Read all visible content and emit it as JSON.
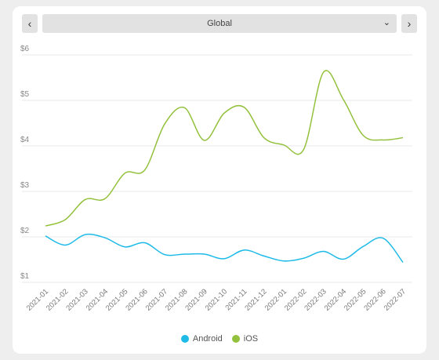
{
  "controls": {
    "prev_label": "‹",
    "next_label": "›",
    "region_value": "Global",
    "prev_icon": "chevron-left-icon",
    "next_icon": "chevron-right-icon",
    "dropdown_icon": "chevron-down-icon"
  },
  "chart_data": {
    "type": "line",
    "x": [
      "2021-01",
      "2021-02",
      "2021-03",
      "2021-04",
      "2021-05",
      "2021-06",
      "2021-07",
      "2021-08",
      "2021-09",
      "2021-10",
      "2021-11",
      "2021-12",
      "2022-01",
      "2022-02",
      "2022-03",
      "2022-04",
      "2022-05",
      "2022-06",
      "2022-07"
    ],
    "ytick_labels": [
      "$1",
      "$2",
      "$3",
      "$4",
      "$5",
      "$6"
    ],
    "ylim": [
      1,
      6
    ],
    "grid": true,
    "legend_position": "bottom-center",
    "series": [
      {
        "name": "Android",
        "color": "#1ebbe8",
        "values": [
          2.02,
          1.82,
          2.05,
          1.98,
          1.78,
          1.87,
          1.61,
          1.62,
          1.62,
          1.52,
          1.71,
          1.58,
          1.47,
          1.53,
          1.68,
          1.51,
          1.79,
          1.97,
          1.44
        ]
      },
      {
        "name": "iOS",
        "color": "#94c13d",
        "values": [
          2.24,
          2.38,
          2.82,
          2.84,
          3.4,
          3.47,
          4.48,
          4.84,
          4.12,
          4.72,
          4.85,
          4.18,
          4.02,
          3.92,
          5.62,
          5.02,
          4.23,
          4.13,
          4.18
        ]
      }
    ]
  }
}
